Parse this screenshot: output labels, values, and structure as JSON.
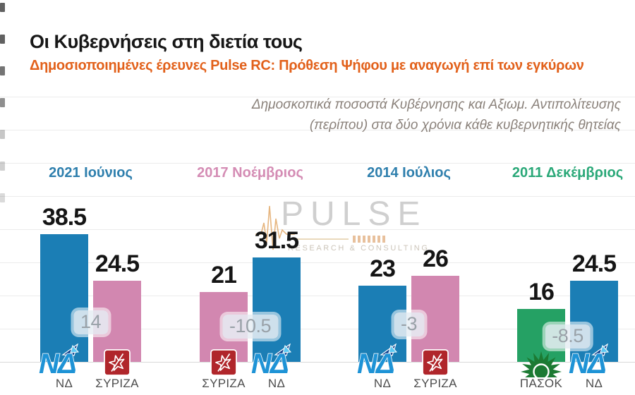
{
  "header": {
    "title": "Οι Κυβερνήσεις στη διετία τους",
    "subtitle": "Δημοσιοποιημένες έρευνες Pulse RC: Πρόθεση Ψήφου με αναγωγή επί των εγκύρων"
  },
  "note": {
    "line1": "Δημοσκοπικά ποσοστά Κυβέρνησης και Αξιωμ. Αντιπολίτευσης",
    "line2": "(περίπου) στα δύο χρόνια κάθε κυβερνητικής θητείας"
  },
  "watermark": {
    "name": "PULSE",
    "tagline": "RESEARCH & CONSULTING"
  },
  "colors": {
    "nd": "#1b7eb5",
    "syriza": "#d287b0",
    "pasok": "#25a164",
    "label_blue": "#2e7fad",
    "label_pink": "#d48cb4",
    "label_green": "#2aa878",
    "subtitle_orange": "#e2611b",
    "note_gray": "#8a817a",
    "grid": "#ececec",
    "baseline": "#d9d9d9",
    "badge_text": "#99a1a8"
  },
  "chart_data": {
    "type": "bar",
    "ylim": [
      0,
      80
    ],
    "grid": true,
    "legend_position": "none",
    "groups": [
      {
        "label": "2021 Ιούνιος",
        "color_key": "blue",
        "diff_label": "14",
        "bars": [
          {
            "party": "ΝΔ",
            "key": "nd",
            "value": 38.5,
            "value_label": "38.5"
          },
          {
            "party": "ΣΥΡΙΖΑ",
            "key": "syriza",
            "value": 24.5,
            "value_label": "24.5"
          }
        ]
      },
      {
        "label": "2017 Νοέμβριος",
        "color_key": "pink",
        "diff_label": "-10.5",
        "bars": [
          {
            "party": "ΣΥΡΙΖΑ",
            "key": "syriza",
            "value": 21,
            "value_label": "21"
          },
          {
            "party": "ΝΔ",
            "key": "nd",
            "value": 31.5,
            "value_label": "31.5"
          }
        ]
      },
      {
        "label": "2014 Ιούλιος",
        "color_key": "blue",
        "diff_label": "-3",
        "bars": [
          {
            "party": "ΝΔ",
            "key": "nd",
            "value": 23,
            "value_label": "23"
          },
          {
            "party": "ΣΥΡΙΖΑ",
            "key": "syriza",
            "value": 26,
            "value_label": "26"
          }
        ]
      },
      {
        "label": "2011 Δεκέμβριος",
        "color_key": "green",
        "diff_label": "-8.5",
        "bars": [
          {
            "party": "ΠΑΣΟΚ",
            "key": "pasok",
            "value": 16,
            "value_label": "16"
          },
          {
            "party": "ΝΔ",
            "key": "nd",
            "value": 24.5,
            "value_label": "24.5"
          }
        ]
      }
    ]
  }
}
